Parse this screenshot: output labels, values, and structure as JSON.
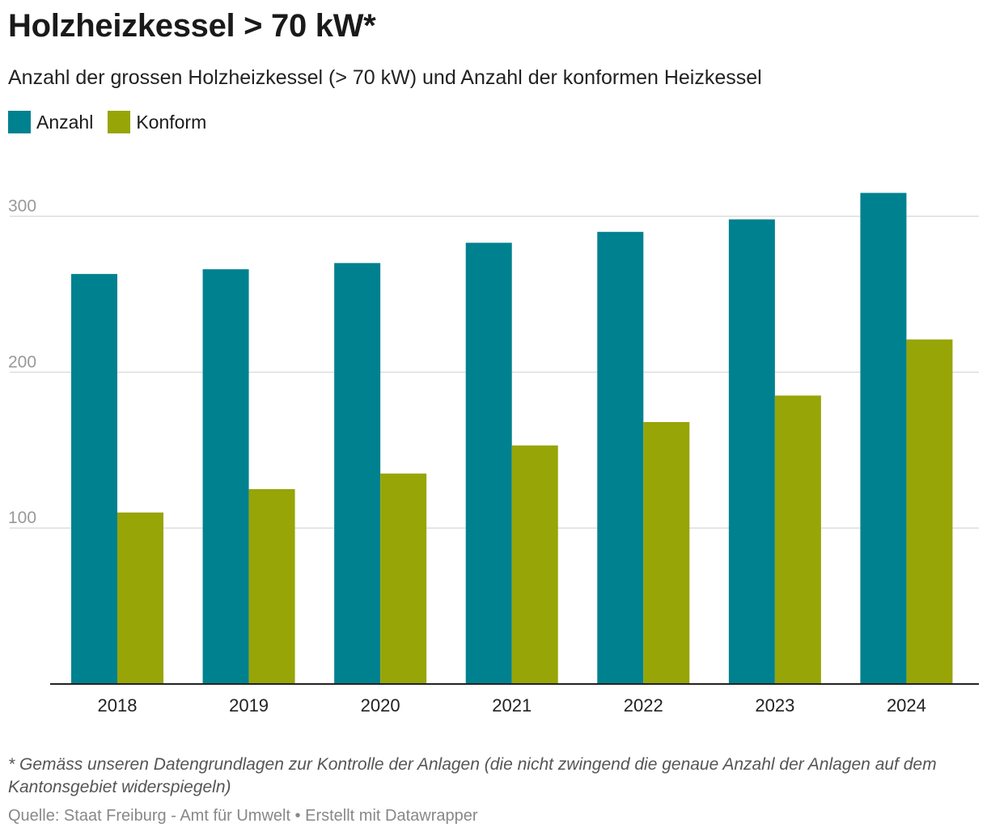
{
  "header": {
    "title": "Holzheizkessel > 70 kW*",
    "subtitle": "Anzahl der grossen Holzheizkessel (> 70 kW) und Anzahl der konformen Heizkessel"
  },
  "legend": [
    {
      "label": "Anzahl",
      "color": "#00818f"
    },
    {
      "label": "Konform",
      "color": "#97a506"
    }
  ],
  "footer": {
    "note": "* Gemäss unseren Datengrundlagen zur Kontrolle der Anlagen (die nicht zwingend die genaue Anzahl der Anlagen auf dem Kantonsgebiet widerspiegeln)",
    "source": "Quelle: Staat Freiburg - Amt für Umwelt • Erstellt mit Datawrapper"
  },
  "chart_data": {
    "type": "bar",
    "title": "Holzheizkessel > 70 kW*",
    "xlabel": "",
    "ylabel": "",
    "categories": [
      "2018",
      "2019",
      "2020",
      "2021",
      "2022",
      "2023",
      "2024"
    ],
    "series": [
      {
        "name": "Anzahl",
        "color": "#00818f",
        "values": [
          263,
          266,
          270,
          283,
          290,
          298,
          315
        ]
      },
      {
        "name": "Konform",
        "color": "#97a506",
        "values": [
          110,
          125,
          135,
          153,
          168,
          185,
          221
        ]
      }
    ],
    "ylim": [
      0,
      335
    ],
    "yticks": [
      100,
      200,
      300
    ],
    "grid": true,
    "legend_position": "top-left"
  }
}
